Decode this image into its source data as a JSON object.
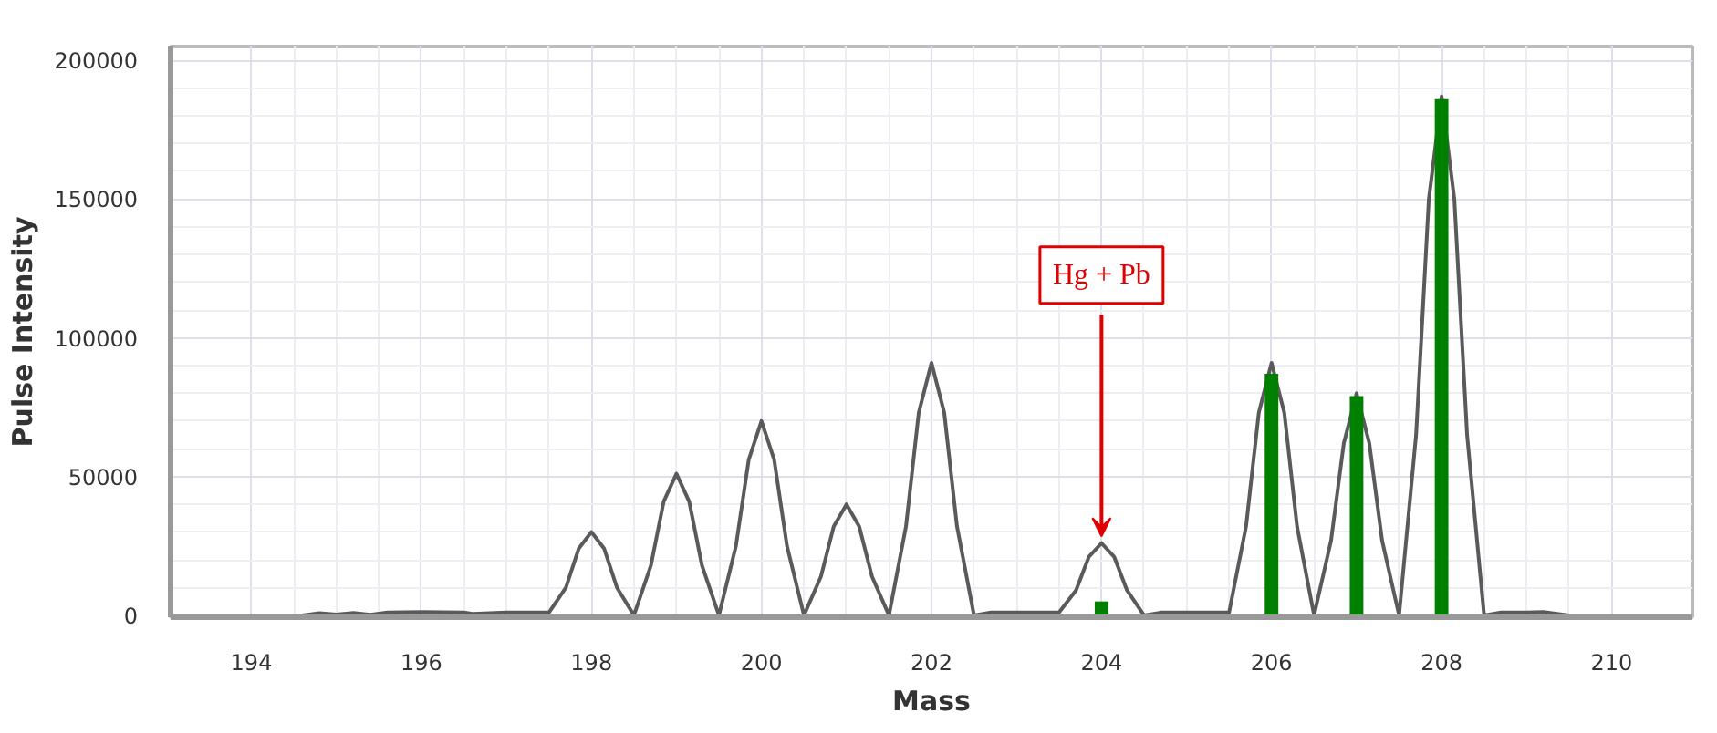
{
  "chart_data": {
    "type": "line",
    "xlabel": "Mass",
    "ylabel": "Pulse Intensity",
    "xlim": [
      193.05,
      210.95
    ],
    "ylim": [
      -700,
      205000
    ],
    "xticks": [
      194,
      196,
      198,
      200,
      202,
      204,
      206,
      208,
      210
    ],
    "yticks": [
      0,
      50000,
      100000,
      150000,
      200000
    ],
    "grid": true,
    "series": [
      {
        "color": "#5a5a5a",
        "x": [
          194.6,
          194.8,
          195.0,
          195.2,
          195.4,
          195.6,
          196.0,
          196.5,
          196.6,
          197.0,
          197.5,
          197.7,
          197.85,
          198.0,
          198.15,
          198.3,
          198.5,
          198.7,
          198.85,
          199.0,
          199.15,
          199.3,
          199.5,
          199.7,
          199.85,
          200.0,
          200.15,
          200.3,
          200.5,
          200.7,
          200.85,
          201.0,
          201.15,
          201.3,
          201.5,
          201.7,
          201.85,
          202.0,
          202.15,
          202.3,
          202.5,
          202.7,
          203.0,
          203.5,
          203.7,
          203.85,
          204.0,
          204.15,
          204.3,
          204.5,
          204.7,
          205.0,
          205.5,
          205.7,
          205.85,
          206.0,
          206.15,
          206.3,
          206.5,
          206.7,
          206.85,
          207.0,
          207.15,
          207.3,
          207.5,
          207.7,
          207.85,
          208.0,
          208.15,
          208.3,
          208.5,
          208.7,
          209.0,
          209.2,
          209.5
        ],
        "values": [
          0,
          800,
          300,
          900,
          200,
          1000,
          1200,
          1000,
          500,
          1000,
          1000,
          10000,
          24000,
          30000,
          24000,
          10000,
          0,
          18000,
          41000,
          51000,
          41000,
          18000,
          0,
          25000,
          56000,
          70000,
          56000,
          25000,
          0,
          14000,
          32000,
          40000,
          32000,
          14000,
          0,
          32000,
          73000,
          91000,
          73000,
          32000,
          0,
          1000,
          1000,
          1000,
          9000,
          21000,
          26000,
          21000,
          9000,
          0,
          1000,
          1000,
          1000,
          32000,
          73000,
          91000,
          73000,
          32000,
          0,
          27000,
          62000,
          80000,
          62000,
          27000,
          0,
          65000,
          150000,
          187000,
          150000,
          65000,
          0,
          1000,
          1000,
          1200,
          0
        ]
      },
      {
        "type": "bar",
        "color": "#008000",
        "x": [
          204,
          206,
          207,
          208
        ],
        "values": [
          5000,
          87000,
          79000,
          186000
        ]
      }
    ],
    "annotations": [
      {
        "text": "Hg + Pb",
        "x": 204,
        "y": 26000
      }
    ]
  }
}
